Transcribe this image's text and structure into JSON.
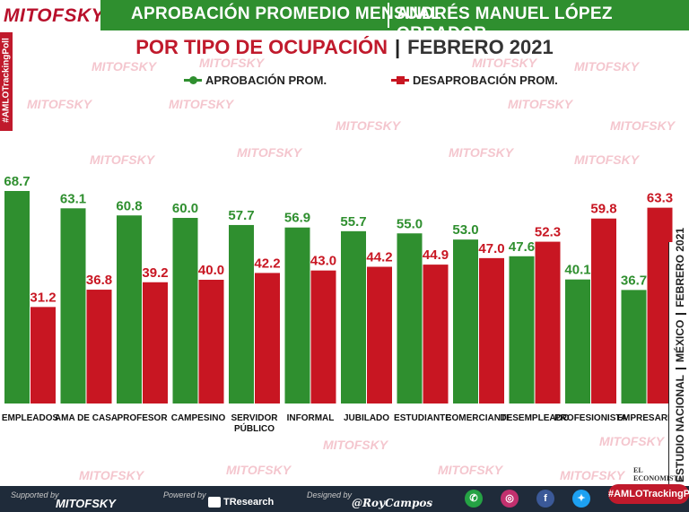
{
  "header": {
    "logo": "MITOFSKY",
    "title_left": "APROBACIÓN PROMEDIO MENSUAL",
    "title_right": "ANDRÉS MANUEL LÓPEZ OBRADOR",
    "subtitle_red": "POR TIPO DE OCUPACIÓN",
    "subtitle_sep": "|",
    "subtitle_dark": "FEBRERO 2021"
  },
  "legend": {
    "approval": "APROBACIÓN PROM.",
    "disapproval": "DESAPROBACIÓN PROM."
  },
  "side": {
    "hashtag": "#AMLOTrackingPoll",
    "right_strip": [
      "ESTUDIO NACIONAL",
      "MÉXICO",
      "FEBRERO 2021"
    ]
  },
  "watermark": "MITOFSKY",
  "colors": {
    "approval": "#2f8f2f",
    "disapproval": "#c81622",
    "header_green": "#2f8f2f",
    "brand_red": "#b8102b"
  },
  "chart_data": {
    "type": "bar",
    "title": "POR TIPO DE OCUPACIÓN | FEBRERO 2021",
    "categories": [
      [
        "EMPLEADOS"
      ],
      [
        "AMA DE CASA"
      ],
      [
        "PROFESOR"
      ],
      [
        "CAMPESINO"
      ],
      [
        "SERVIDOR",
        "PÚBLICO"
      ],
      [
        "INFORMAL"
      ],
      [
        "JUBILADO"
      ],
      [
        "ESTUDIANTE"
      ],
      [
        "COMERCIANTE"
      ],
      [
        "DESEMPLEADO"
      ],
      [
        "PROFESIONISTA"
      ],
      [
        "EMPRESARIO"
      ]
    ],
    "series": [
      {
        "name": "APROBACIÓN PROM.",
        "values": [
          68.7,
          63.1,
          60.8,
          60.0,
          57.7,
          56.9,
          55.7,
          55.0,
          53.0,
          47.6,
          40.1,
          36.7
        ]
      },
      {
        "name": "DESAPROBACIÓN PROM.",
        "values": [
          31.2,
          36.8,
          39.2,
          40.0,
          42.2,
          43.0,
          44.2,
          44.9,
          47.0,
          52.3,
          59.8,
          63.3
        ]
      }
    ],
    "ylim": [
      0,
      70
    ],
    "xlabel": "",
    "ylabel": ""
  },
  "footer": {
    "supported_by": "Supported by",
    "supported_brand": "MITOFSKY",
    "powered_by": "Powered by",
    "powered_brand": "TResearch",
    "designed_by": "Designed by",
    "designer": "@RoyCampos",
    "hashtag": "#AMLOTrackingPoll",
    "partner": "EL ECONOMISTA"
  }
}
